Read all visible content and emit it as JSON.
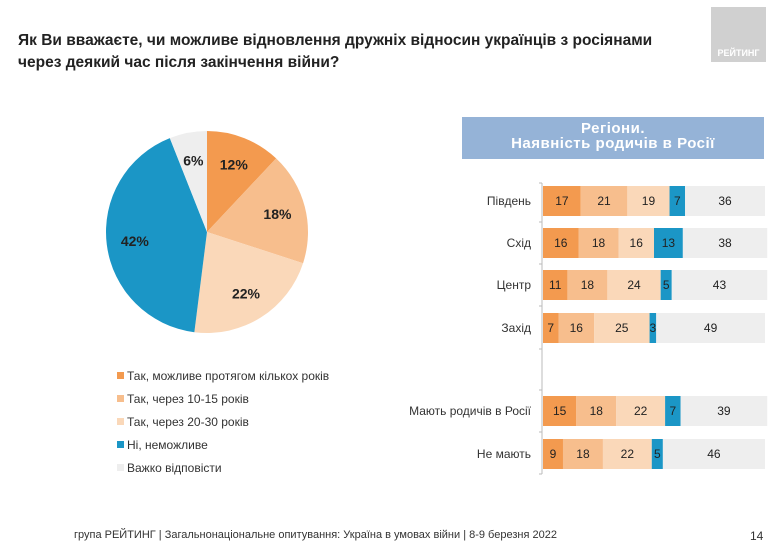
{
  "title": "Як Ви вважаєте, чи можливе відновлення дружніх відносин українців з росіянами через деякий час після закінчення війни?",
  "logo_text": "РЕЙТИНГ",
  "footer": "група РЕЙТИНГ | Загальнонаціональне опитування: Україна в умовах війни | 8-9 березня 2022",
  "page_number": "14",
  "colors": [
    "#f39a4f",
    "#f7be8d",
    "#fad8b9",
    "#1b96c6",
    "#eeeeee"
  ],
  "chart_data": [
    {
      "type": "pie",
      "labels": [
        "Так, можливе протягом кількох років",
        "Так, через 10-15 років",
        "Так, через 20-30 років",
        "Ні, неможливе",
        "Важко відповісти"
      ],
      "values": [
        12,
        18,
        22,
        42,
        6
      ],
      "data_labels": [
        "12%",
        "18%",
        "22%",
        "42%",
        "6%"
      ],
      "legend_placement": "bottom"
    },
    {
      "type": "bar",
      "stacked": true,
      "orientation": "horizontal",
      "title": "Регіони. Наявність родичів в Росії",
      "title_lines": [
        "Регіони.",
        "Наявність родичів в Росії"
      ],
      "categories": [
        "Південь",
        "Схід",
        "Центр",
        "Захід",
        "Мають родичів в Росії",
        "Не мають"
      ],
      "series": [
        {
          "values": [
            17,
            16,
            11,
            7,
            15,
            9
          ]
        },
        {
          "values": [
            21,
            18,
            18,
            16,
            18,
            18
          ]
        },
        {
          "values": [
            19,
            16,
            24,
            25,
            22,
            22
          ]
        },
        {
          "values": [
            7,
            13,
            5,
            3,
            7,
            5
          ]
        },
        {
          "values": [
            36,
            38,
            43,
            49,
            39,
            46
          ]
        }
      ],
      "xlim": [
        0,
        100
      ]
    }
  ]
}
